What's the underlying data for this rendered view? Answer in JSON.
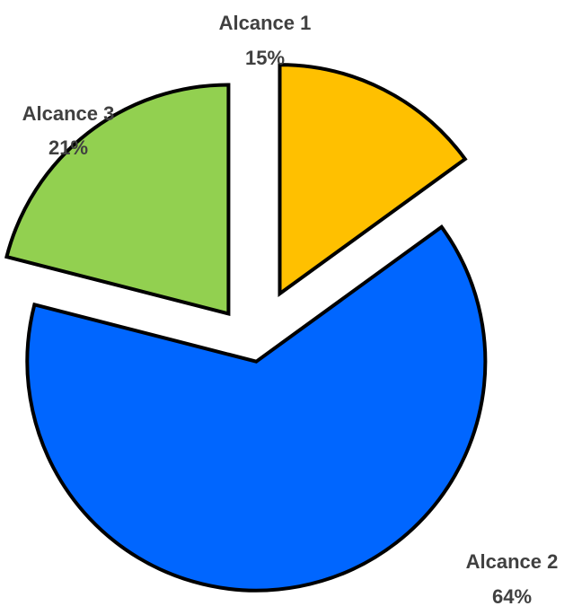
{
  "chart_data": {
    "type": "pie",
    "exploded": true,
    "legend": "none",
    "slices": [
      {
        "label": "Alcance 1",
        "value": 15,
        "display": "15%",
        "color": "#FFC000"
      },
      {
        "label": "Alcance 2",
        "value": 64,
        "display": "64%",
        "color": "#0066FF"
      },
      {
        "label": "Alcance 3",
        "value": 21,
        "display": "21%",
        "color": "#92D050"
      }
    ]
  }
}
